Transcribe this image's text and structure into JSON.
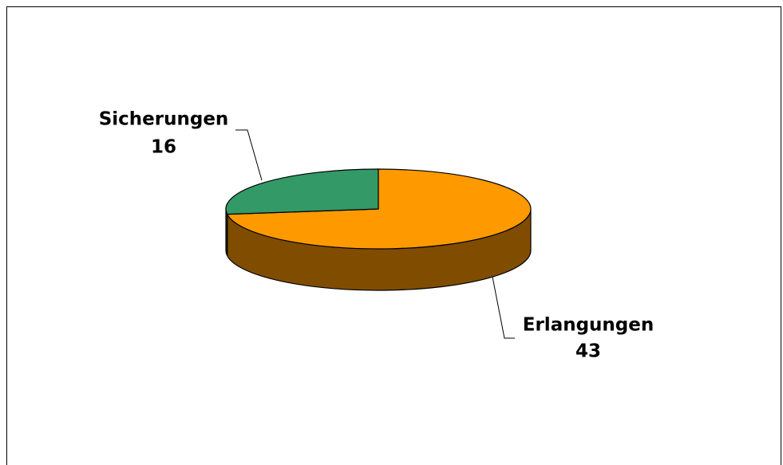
{
  "chart_data": {
    "type": "pie3d",
    "categories": [
      "Erlangungen",
      "Sicherungen"
    ],
    "values": [
      43,
      16
    ],
    "colors": [
      "#ff9900",
      "#339966"
    ]
  }
}
